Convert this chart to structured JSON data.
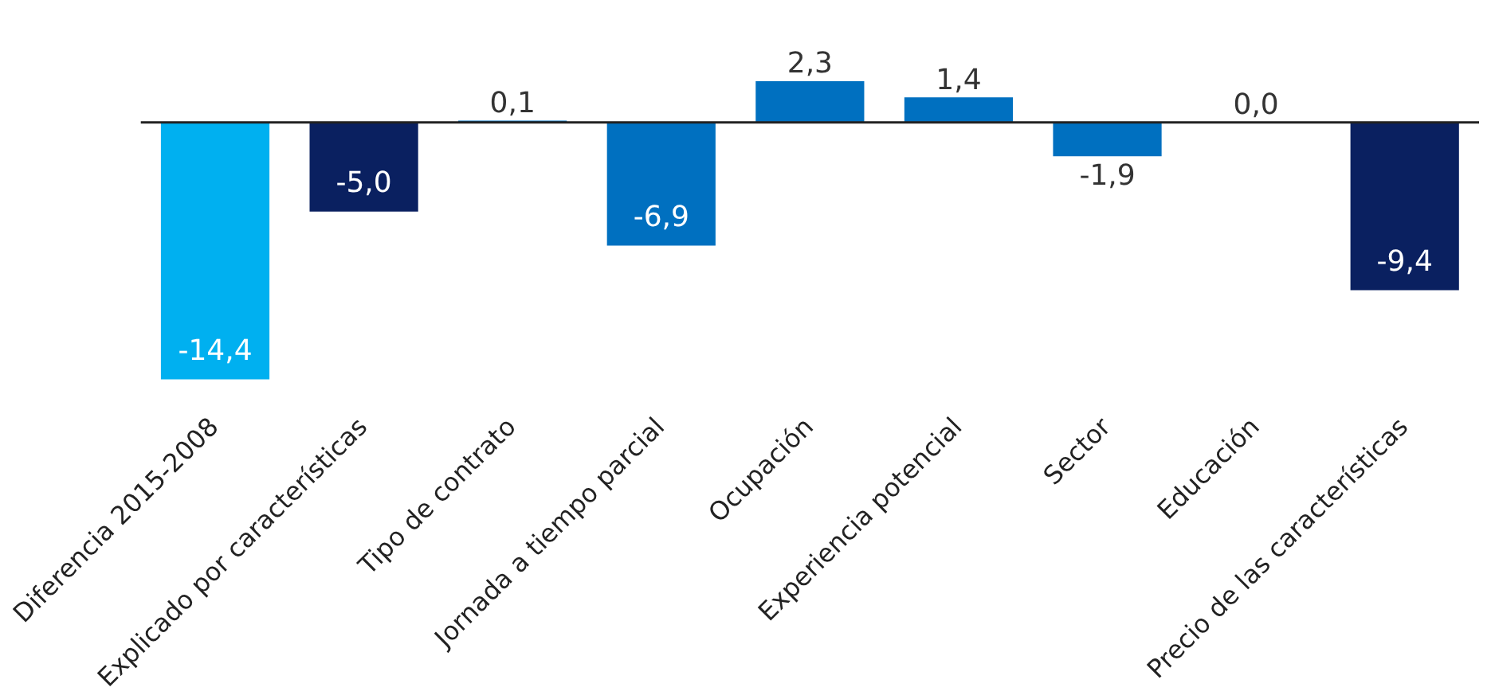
{
  "chart_data": {
    "type": "bar",
    "categories": [
      "Diferencia 2015-2008",
      "Explicado por características",
      "Tipo de contrato",
      "Jornada a tiempo parcial",
      "Ocupación",
      "Experiencia potencial",
      "Sector",
      "Educación",
      "Precio de las características"
    ],
    "values": [
      -14.4,
      -5.0,
      0.1,
      -6.9,
      2.3,
      1.4,
      -1.9,
      0.0,
      -9.4
    ],
    "colors": [
      "#00b0f0",
      "#0a2060",
      "#0070c0",
      "#0070c0",
      "#0070c0",
      "#0070c0",
      "#0070c0",
      "#0070c0",
      "#0a2060"
    ],
    "value_labels": [
      "-14,4",
      "-5,0",
      "0,1",
      "-6,9",
      "2,3",
      "1,4",
      "-1,9",
      "0,0",
      "-9,4"
    ],
    "tick_labels": "x",
    "grid": false,
    "legend": false
  }
}
